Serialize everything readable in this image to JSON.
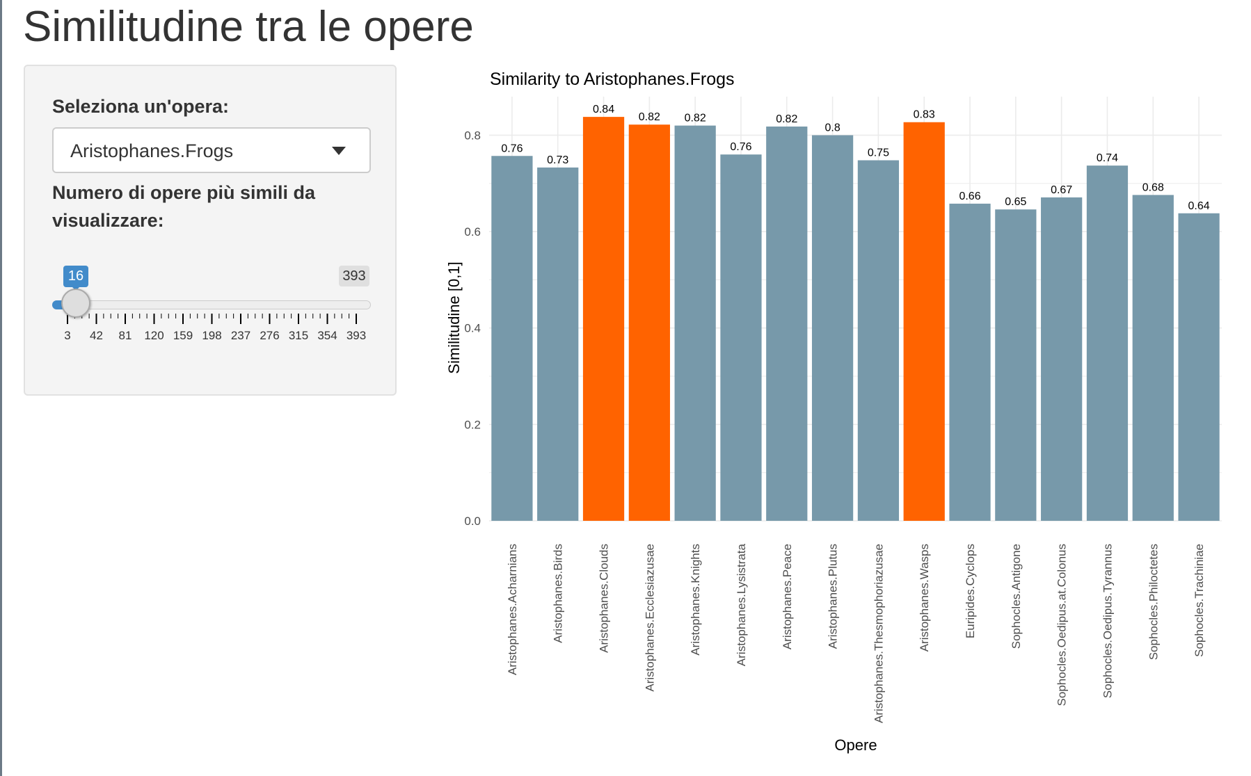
{
  "page": {
    "title": "Similitudine tra le opere"
  },
  "sidebar": {
    "select_label": "Seleziona un'opera:",
    "select_value": "Aristophanes.Frogs",
    "slider_label": "Numero di opere più simili da visualizzare:",
    "slider": {
      "value": "16",
      "max_label": "393",
      "min": 3,
      "max": 393,
      "ticks": [
        "3",
        "42",
        "81",
        "120",
        "159",
        "198",
        "237",
        "276",
        "315",
        "354",
        "393"
      ],
      "accent": "#428bca"
    }
  },
  "chart_data": {
    "type": "bar",
    "title": "Similarity to Aristophanes.Frogs",
    "xlabel": "Opere",
    "ylabel": "Similitudine [0,1]",
    "ylim": [
      0,
      0.88
    ],
    "yticks": [
      "0.0",
      "0.2",
      "0.4",
      "0.6",
      "0.8"
    ],
    "ytick_values": [
      0,
      0.2,
      0.4,
      0.6,
      0.8
    ],
    "grid": true,
    "categories": [
      "Aristophanes.Acharnians",
      "Aristophanes.Birds",
      "Aristophanes.Clouds",
      "Aristophanes.Ecclesiazusae",
      "Aristophanes.Knights",
      "Aristophanes.Lysistrata",
      "Aristophanes.Peace",
      "Aristophanes.Plutus",
      "Aristophanes.Thesmophoriazusae",
      "Aristophanes.Wasps",
      "Euripides.Cyclops",
      "Sophocles.Antigone",
      "Sophocles.Oedipus.at.Colonus",
      "Sophocles.Oedipus.Tyrannus",
      "Sophocles.Philoctetes",
      "Sophocles.Trachiniae"
    ],
    "values": [
      0.757,
      0.733,
      0.838,
      0.822,
      0.82,
      0.76,
      0.818,
      0.8,
      0.748,
      0.827,
      0.658,
      0.646,
      0.671,
      0.737,
      0.676,
      0.638
    ],
    "labels": [
      "0.76",
      "0.73",
      "0.84",
      "0.82",
      "0.82",
      "0.76",
      "0.82",
      "0.8",
      "0.75",
      "0.83",
      "0.66",
      "0.65",
      "0.67",
      "0.74",
      "0.68",
      "0.64"
    ],
    "highlighted": [
      false,
      false,
      true,
      true,
      false,
      false,
      false,
      false,
      false,
      true,
      false,
      false,
      false,
      false,
      false,
      false
    ],
    "colors": {
      "bar": "#7799aa",
      "highlight": "#ff6300",
      "grid": "#ebebeb",
      "text": "#4d4d4d"
    }
  }
}
